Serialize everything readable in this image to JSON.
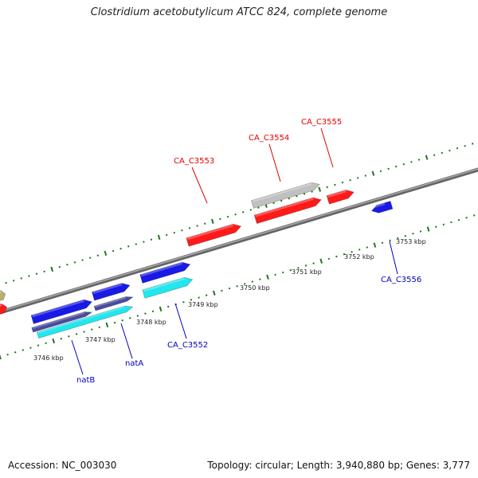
{
  "title": "Clostridium acetobutylicum ATCC 824, complete genome",
  "footer": {
    "accession": "Accession: NC_003030",
    "topology": "Topology: circular; Length: 3,940,880 bp; Genes: 3,777"
  },
  "colors": {
    "backbone": "#808080",
    "forward_tick": "#1a7a1a",
    "reverse_tick": "#1a7a1a",
    "red_gene": "#ff1a1a",
    "blue_gene": "#1a1ae6",
    "cyan_gene": "#22e6ee",
    "purple_gene": "#4a4aa0",
    "gray_gene": "#c0c0c0",
    "olive_gene": "#b8b070",
    "red_label": "#e00000",
    "blue_label": "#0000c0"
  },
  "kbp_labels": [
    "3746 kbp",
    "3747 kbp",
    "3748 kbp",
    "3749 kbp",
    "3750 kbp",
    "3751 kbp",
    "3752 kbp",
    "3753 kbp"
  ],
  "gene_labels": [
    {
      "text": "CA_C3553",
      "color": "red"
    },
    {
      "text": "CA_C3554",
      "color": "red"
    },
    {
      "text": "CA_C3555",
      "color": "red"
    },
    {
      "text": "CA_C3552",
      "color": "blue"
    },
    {
      "text": "natA",
      "color": "blue"
    },
    {
      "text": "natB",
      "color": "blue"
    },
    {
      "text": "CA_C3556",
      "color": "blue"
    }
  ]
}
